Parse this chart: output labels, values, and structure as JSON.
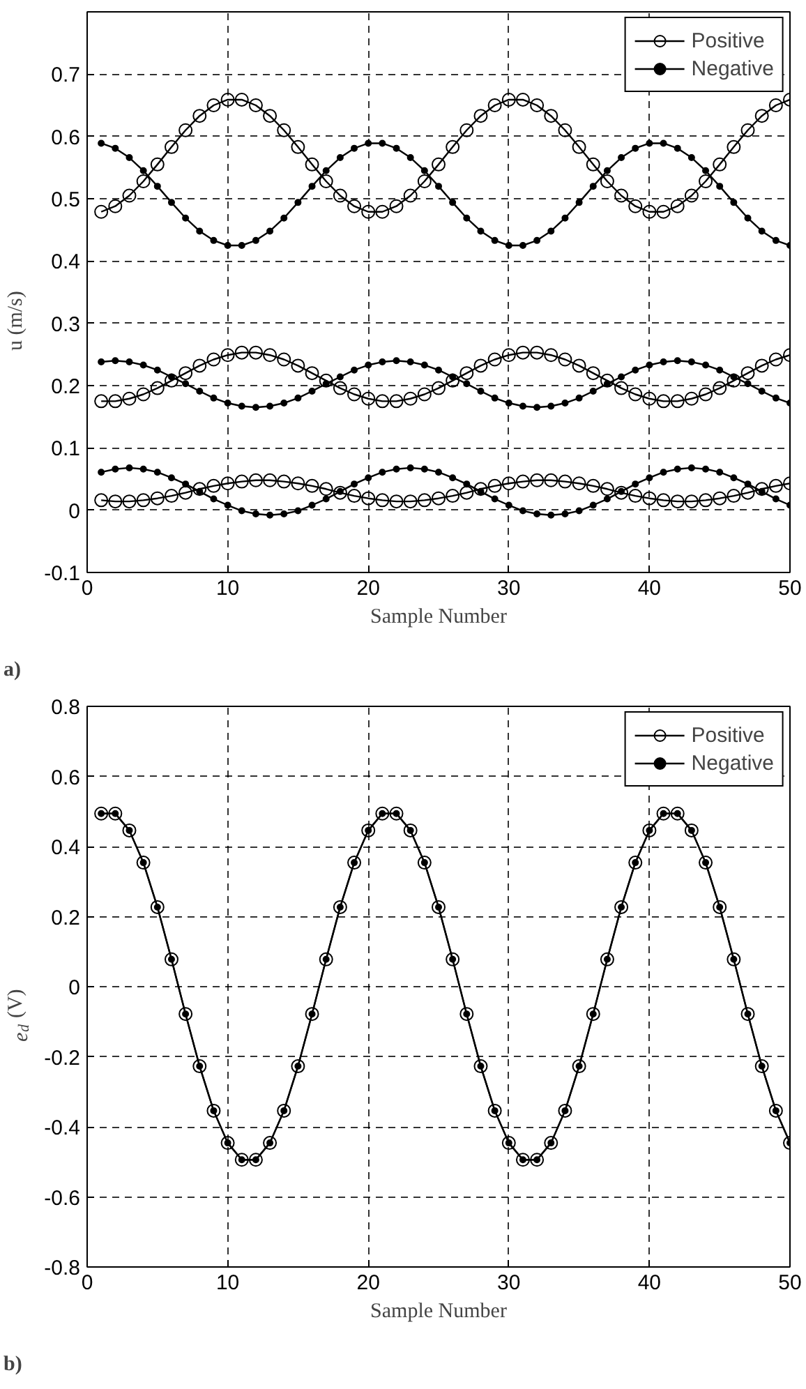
{
  "chart_data": [
    {
      "type": "line",
      "xlabel": "Sample Number",
      "ylabel": "u (m/s)",
      "annotations": [
        "a)"
      ],
      "xlim": [
        0,
        50
      ],
      "xticks": [
        0,
        10,
        20,
        30,
        40,
        50
      ],
      "ylim": [
        -0.1,
        0.8
      ],
      "yticks": [
        -0.1,
        0,
        0.1,
        0.2,
        0.3,
        0.4,
        0.5,
        0.6,
        0.7
      ],
      "grid": true,
      "legend": "top right",
      "line_style": "solid",
      "x": [
        1,
        2,
        3,
        4,
        5,
        6,
        7,
        8,
        9,
        10,
        11,
        12,
        13,
        14,
        15,
        16,
        17,
        18,
        19,
        20,
        21,
        22,
        23,
        24,
        25,
        26,
        27,
        28,
        29,
        30,
        31,
        32,
        33,
        34,
        35,
        36,
        37,
        38,
        39,
        40,
        41,
        42,
        43,
        44,
        45,
        46,
        47,
        48,
        49,
        50
      ],
      "series": [
        {
          "name": "Positive",
          "color": "#000000",
          "marker": "circle",
          "values": [
            0.479,
            0.488,
            0.505,
            0.528,
            0.555,
            0.583,
            0.61,
            0.633,
            0.65,
            0.659,
            0.659,
            0.65,
            0.633,
            0.61,
            0.583,
            0.555,
            0.528,
            0.505,
            0.488,
            0.479,
            0.479,
            0.488,
            0.505,
            0.528,
            0.555,
            0.583,
            0.61,
            0.633,
            0.65,
            0.659,
            0.659,
            0.65,
            0.633,
            0.61,
            0.583,
            0.555,
            0.528,
            0.505,
            0.488,
            0.479,
            0.479,
            0.488,
            0.505,
            0.528,
            0.555,
            0.583,
            0.61,
            0.633,
            0.65,
            0.659
          ]
        },
        {
          "name": "Negative",
          "color": "#000000",
          "marker": "dot",
          "values": [
            0.589,
            0.581,
            0.566,
            0.545,
            0.52,
            0.494,
            0.469,
            0.448,
            0.433,
            0.425,
            0.425,
            0.433,
            0.448,
            0.469,
            0.494,
            0.52,
            0.545,
            0.566,
            0.581,
            0.589,
            0.589,
            0.581,
            0.566,
            0.545,
            0.52,
            0.494,
            0.469,
            0.448,
            0.433,
            0.425,
            0.425,
            0.433,
            0.448,
            0.469,
            0.494,
            0.52,
            0.545,
            0.566,
            0.581,
            0.589,
            0.589,
            0.581,
            0.566,
            0.545,
            0.52,
            0.494,
            0.469,
            0.448,
            0.433,
            0.425
          ]
        },
        {
          "color": "#000000",
          "marker": "circle",
          "values": [
            0.175,
            0.175,
            0.179,
            0.186,
            0.196,
            0.208,
            0.22,
            0.232,
            0.242,
            0.249,
            0.253,
            0.253,
            0.249,
            0.242,
            0.232,
            0.22,
            0.208,
            0.196,
            0.186,
            0.179,
            0.175,
            0.175,
            0.179,
            0.186,
            0.196,
            0.208,
            0.22,
            0.232,
            0.242,
            0.249,
            0.253,
            0.253,
            0.249,
            0.242,
            0.232,
            0.22,
            0.208,
            0.196,
            0.186,
            0.179,
            0.175,
            0.175,
            0.179,
            0.186,
            0.196,
            0.208,
            0.22,
            0.232,
            0.242,
            0.249
          ]
        },
        {
          "color": "#000000",
          "marker": "dot",
          "values": [
            0.238,
            0.24,
            0.238,
            0.233,
            0.225,
            0.214,
            0.203,
            0.191,
            0.18,
            0.172,
            0.167,
            0.165,
            0.167,
            0.172,
            0.18,
            0.191,
            0.203,
            0.214,
            0.225,
            0.233,
            0.238,
            0.24,
            0.238,
            0.233,
            0.225,
            0.214,
            0.203,
            0.191,
            0.18,
            0.172,
            0.167,
            0.165,
            0.167,
            0.172,
            0.18,
            0.191,
            0.203,
            0.214,
            0.225,
            0.233,
            0.238,
            0.24,
            0.238,
            0.233,
            0.225,
            0.214,
            0.203,
            0.191,
            0.18,
            0.172
          ]
        },
        {
          "color": "#000000",
          "marker": "circle",
          "values": [
            0.016,
            0.014,
            0.014,
            0.016,
            0.019,
            0.023,
            0.028,
            0.034,
            0.039,
            0.043,
            0.046,
            0.048,
            0.048,
            0.046,
            0.043,
            0.039,
            0.034,
            0.028,
            0.023,
            0.019,
            0.016,
            0.014,
            0.014,
            0.016,
            0.019,
            0.023,
            0.028,
            0.034,
            0.039,
            0.043,
            0.046,
            0.048,
            0.048,
            0.046,
            0.043,
            0.039,
            0.034,
            0.028,
            0.023,
            0.019,
            0.016,
            0.014,
            0.014,
            0.016,
            0.019,
            0.023,
            0.028,
            0.034,
            0.039,
            0.043
          ]
        },
        {
          "color": "#000000",
          "marker": "dot",
          "values": [
            0.061,
            0.066,
            0.068,
            0.066,
            0.061,
            0.052,
            0.042,
            0.03,
            0.018,
            0.008,
            -0.001,
            -0.006,
            -0.008,
            -0.006,
            -0.001,
            0.008,
            0.018,
            0.03,
            0.042,
            0.052,
            0.061,
            0.066,
            0.068,
            0.066,
            0.061,
            0.052,
            0.042,
            0.03,
            0.018,
            0.008,
            -0.001,
            -0.006,
            -0.008,
            -0.006,
            -0.001,
            0.008,
            0.018,
            0.03,
            0.042,
            0.052,
            0.061,
            0.066,
            0.068,
            0.066,
            0.061,
            0.052,
            0.042,
            0.03,
            0.018,
            0.008
          ]
        }
      ]
    },
    {
      "type": "line",
      "xlabel": "Sample Number",
      "ylabel": "e$_{d}$ (V)",
      "annotations": [
        "b)"
      ],
      "xlim": [
        0,
        50
      ],
      "xticks": [
        0,
        10,
        20,
        30,
        40,
        50
      ],
      "ylim": [
        -0.8,
        0.8
      ],
      "yticks": [
        -0.8,
        -0.6,
        -0.4,
        -0.2,
        0,
        0.2,
        0.4,
        0.6,
        0.8
      ],
      "grid": true,
      "legend": "top right",
      "line_style": "solid",
      "x": [
        1,
        2,
        3,
        4,
        5,
        6,
        7,
        8,
        9,
        10,
        11,
        12,
        13,
        14,
        15,
        16,
        17,
        18,
        19,
        20,
        21,
        22,
        23,
        24,
        25,
        26,
        27,
        28,
        29,
        30,
        31,
        32,
        33,
        34,
        35,
        36,
        37,
        38,
        39,
        40,
        41,
        42,
        43,
        44,
        45,
        46,
        47,
        48,
        49,
        50
      ],
      "series": [
        {
          "name": "Positive",
          "color": "#000000",
          "marker": "circle",
          "values": [
            0.494,
            0.494,
            0.446,
            0.354,
            0.227,
            0.078,
            -0.078,
            -0.227,
            -0.354,
            -0.446,
            -0.494,
            -0.494,
            -0.446,
            -0.354,
            -0.227,
            -0.078,
            0.078,
            0.227,
            0.354,
            0.446,
            0.494,
            0.494,
            0.446,
            0.354,
            0.227,
            0.078,
            -0.078,
            -0.227,
            -0.354,
            -0.446,
            -0.494,
            -0.494,
            -0.446,
            -0.354,
            -0.227,
            -0.078,
            0.078,
            0.227,
            0.354,
            0.446,
            0.494,
            0.494,
            0.446,
            0.354,
            0.227,
            0.078,
            -0.078,
            -0.227,
            -0.354,
            -0.446
          ]
        },
        {
          "name": "Negative",
          "color": "#000000",
          "marker": "dot",
          "values": [
            0.494,
            0.494,
            0.446,
            0.354,
            0.227,
            0.078,
            -0.078,
            -0.227,
            -0.354,
            -0.446,
            -0.494,
            -0.494,
            -0.446,
            -0.354,
            -0.227,
            -0.078,
            0.078,
            0.227,
            0.354,
            0.446,
            0.494,
            0.494,
            0.446,
            0.354,
            0.227,
            0.078,
            -0.078,
            -0.227,
            -0.354,
            -0.446,
            -0.494,
            -0.494,
            -0.446,
            -0.354,
            -0.227,
            -0.078,
            0.078,
            0.227,
            0.354,
            0.446,
            0.494,
            0.494,
            0.446,
            0.354,
            0.227,
            0.078,
            -0.078,
            -0.227,
            -0.354,
            -0.446
          ]
        }
      ]
    }
  ]
}
